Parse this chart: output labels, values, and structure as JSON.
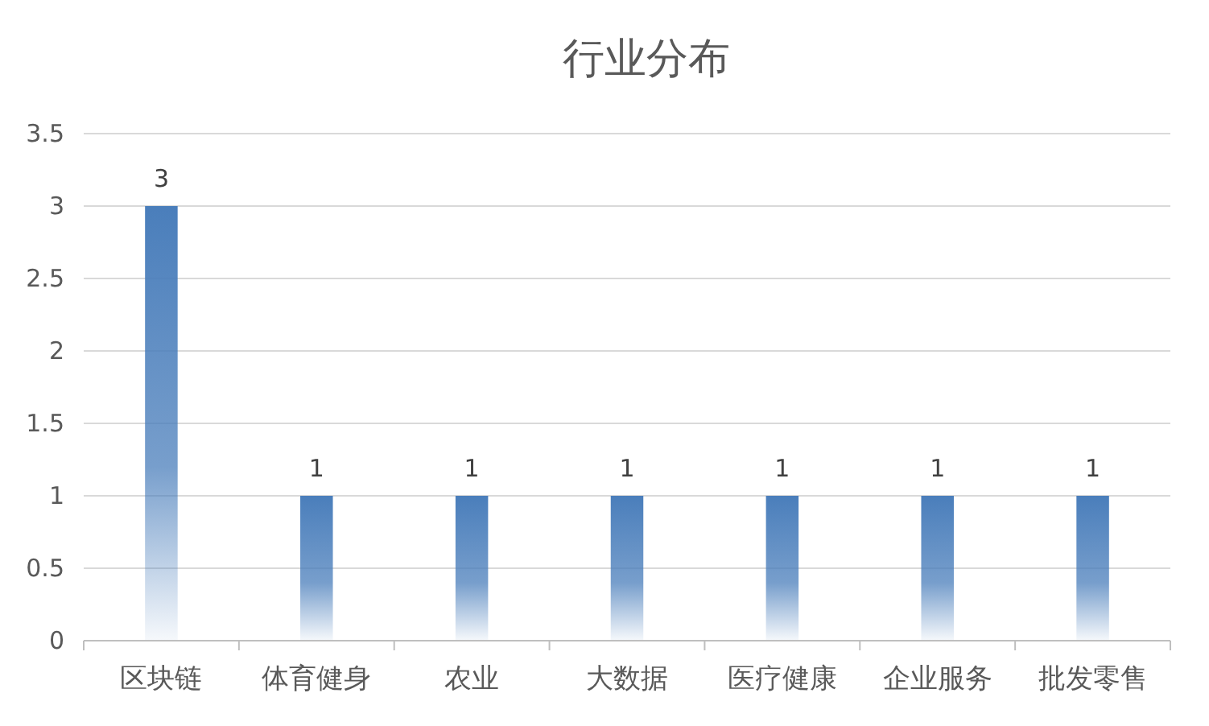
{
  "chart_data": {
    "type": "bar",
    "title": "行业分布",
    "categories": [
      "区块链",
      "体育健身",
      "农业",
      "大数据",
      "医疗健康",
      "企业服务",
      "批发零售"
    ],
    "values": [
      3,
      1,
      1,
      1,
      1,
      1,
      1
    ],
    "color": "#4a7ebb",
    "ylim": [
      0,
      3.5
    ],
    "yticks": [
      0,
      0.5,
      1,
      1.5,
      2,
      2.5,
      3,
      3.5
    ],
    "grid": "y",
    "data_labels": true
  }
}
